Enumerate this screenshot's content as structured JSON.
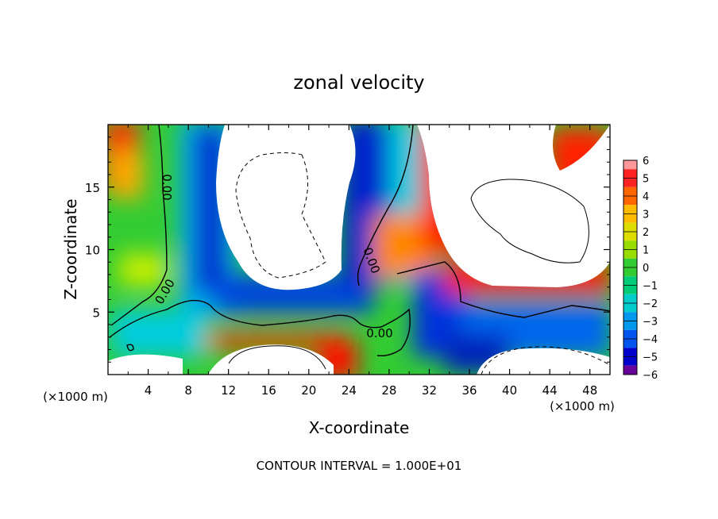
{
  "chart_data": {
    "type": "heatmap",
    "title": "zonal velocity",
    "xlabel": "X-coordinate",
    "ylabel": "Z-coordinate",
    "x_multiplier_label": "(×1000 m)",
    "xlim": [
      0,
      50
    ],
    "ylim": [
      0,
      20
    ],
    "x_ticks": [
      "4",
      "8",
      "12",
      "16",
      "20",
      "24",
      "28",
      "32",
      "36",
      "40",
      "44",
      "48"
    ],
    "y_ticks": [
      "5",
      "10",
      "15"
    ],
    "colorbar": {
      "levels": [
        "6",
        "5",
        "4",
        "3",
        "2",
        "1",
        "0",
        "-1",
        "-2",
        "-3",
        "-4",
        "-5",
        "-6"
      ],
      "range": [
        -6,
        6
      ]
    },
    "contour_labels": [
      "0.00",
      "0.00",
      "0.00",
      "0.00"
    ],
    "footer": "CONTOUR INTERVAL = 1.000E+01"
  }
}
